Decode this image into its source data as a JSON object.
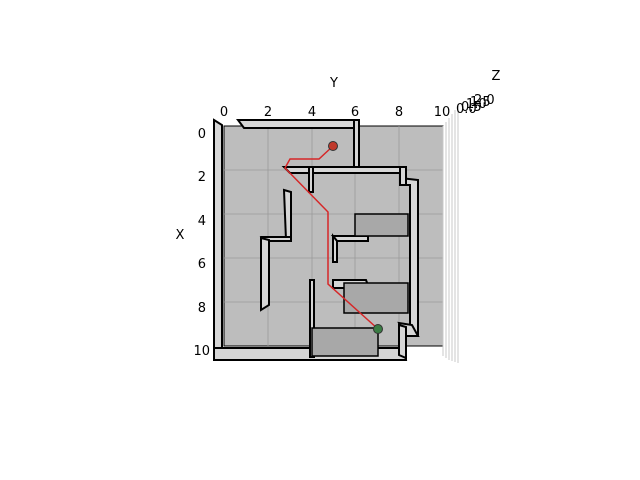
{
  "axes": {
    "x_label": "X",
    "y_label": "Y",
    "z_label": "Z",
    "y_ticks": [
      "0",
      "2",
      "4",
      "6",
      "8",
      "10"
    ],
    "x_ticks": [
      "0",
      "2",
      "4",
      "6",
      "8",
      "10"
    ],
    "z_ticks": [
      "0.0",
      "0.5",
      "1.0",
      "1.5",
      "2.0"
    ]
  },
  "colors": {
    "floor": "#bdbdbd",
    "wall_top": "#d6d6d6",
    "wall_edge": "#000000",
    "block": "#a8a8a8",
    "path": "#d62728",
    "start_marker": "#c0392b",
    "goal_marker": "#3a7d44",
    "grid": "#9a9a9a"
  },
  "path": {
    "description_visible": false,
    "points": [
      [
        0.6,
        5.0
      ],
      [
        1.2,
        4.4
      ],
      [
        1.2,
        3.0
      ],
      [
        1.8,
        2.8
      ],
      [
        3.8,
        4.8
      ],
      [
        7.2,
        4.8
      ],
      [
        9.2,
        7.0
      ]
    ]
  },
  "markers": {
    "start": [
      0.6,
      5.0
    ],
    "goal": [
      9.2,
      7.0
    ]
  }
}
